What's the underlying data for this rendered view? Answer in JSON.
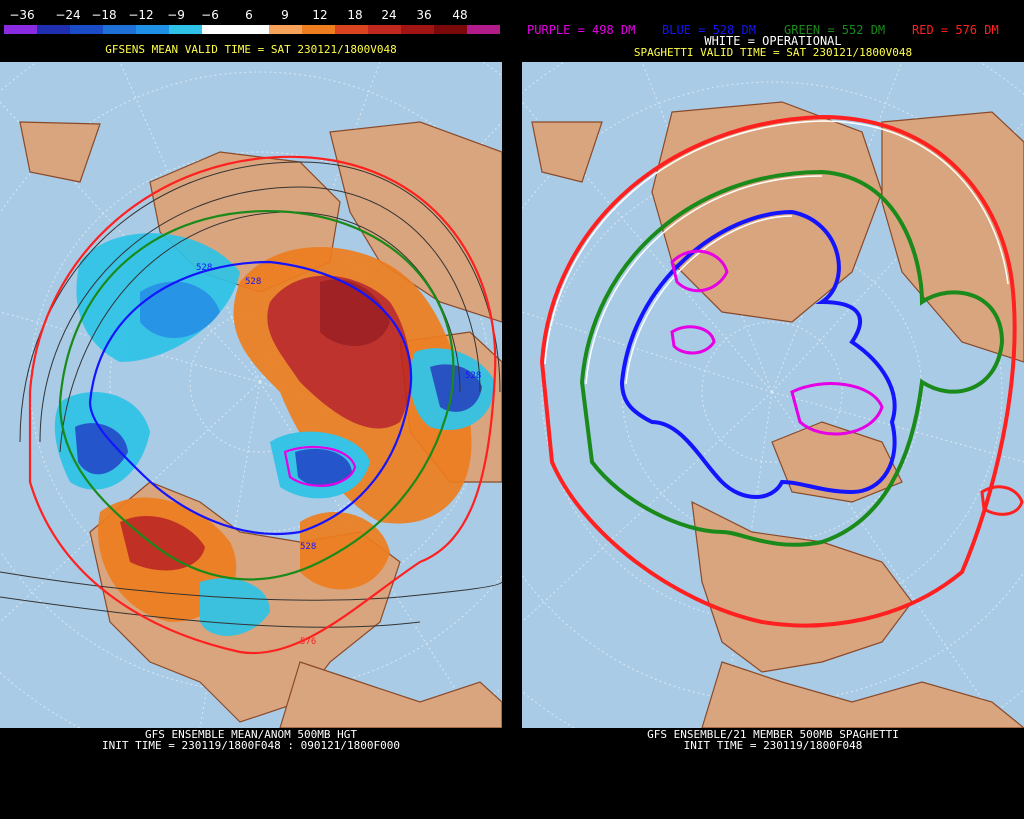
{
  "left_panel": {
    "colorbar": {
      "labels": [
        "−36",
        "−24",
        "−18",
        "−12",
        "−9",
        "−6",
        "6",
        "9",
        "12",
        "18",
        "24",
        "36",
        "48"
      ],
      "colors": [
        "#8a2be2",
        "#1f2fb0",
        "#1a4cc8",
        "#1e6fd6",
        "#1e90e6",
        "#2ec3e6",
        "#ffffff",
        "#ffffff",
        "#f7a35b",
        "#ee7d1f",
        "#d9431f",
        "#c0271e",
        "#a01414",
        "#7a0a0a",
        "#b21c8a"
      ]
    },
    "valid_time": "GFSENS MEAN VALID TIME = SAT 230121/1800V048",
    "footer_line1": "GFS ENSEMBLE MEAN/ANOM 500MB HGT",
    "footer_line2": "INIT TIME = 230119/1800F048 : 090121/1800F000",
    "contour_labels": [
      "528",
      "528",
      "528",
      "528",
      "576"
    ]
  },
  "right_panel": {
    "legend": {
      "purple": "PURPLE = 498 DM",
      "blue": "BLUE = 528 DM",
      "green": "GREEN = 552 DM",
      "red": "RED = 576 DM",
      "white": "WHITE = OPERATIONAL"
    },
    "colors": {
      "purple": "#e600e6",
      "blue": "#1414ff",
      "green": "#1a8a1a",
      "red": "#ff2020",
      "white": "#ffffff"
    },
    "valid_time": "SPAGHETTI VALID TIME = SAT 230121/1800V048",
    "footer_line1": "GFS ENSEMBLE/21 MEMBER 500MB SPAGHETTI",
    "footer_line2": "INIT TIME = 230119/1800F048"
  },
  "map_colors": {
    "ocean": "#a9cbe6",
    "land": "#d9a57e",
    "coast": "#8a4a2a",
    "grid": "#dbe8f3"
  }
}
